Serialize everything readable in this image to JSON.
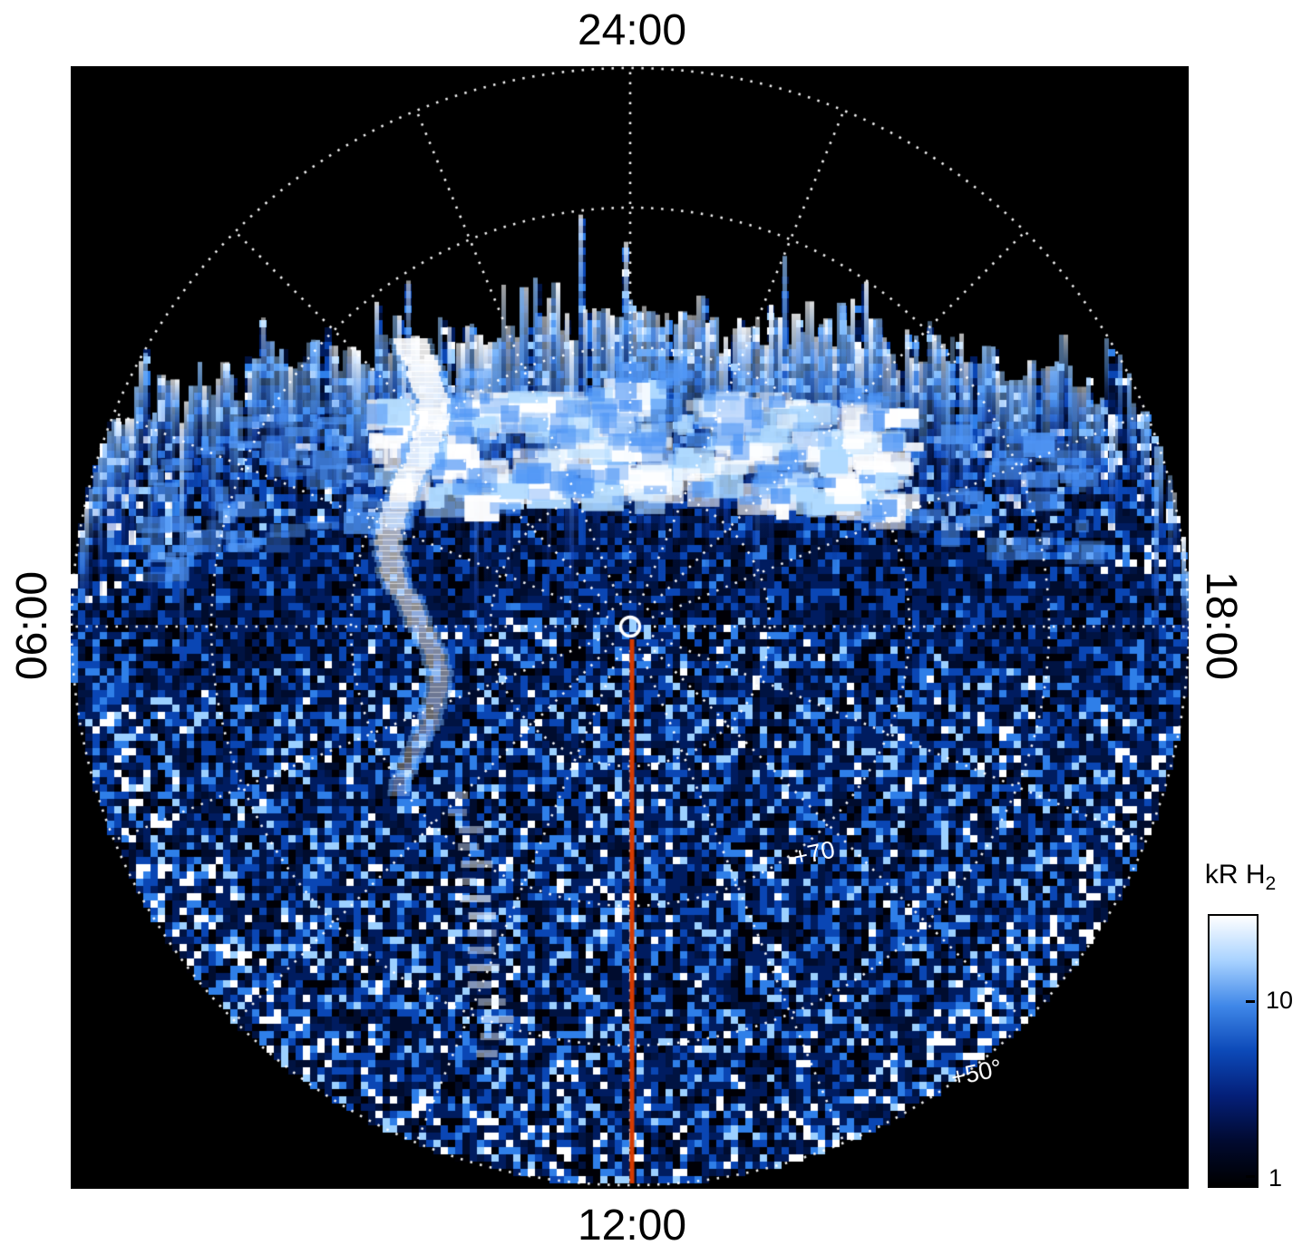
{
  "axis_labels": {
    "top": "24:00",
    "bottom": "12:00",
    "left": "06:00",
    "right": "18:00"
  },
  "latitude_labels": {
    "lat70": "+70",
    "lat50": "+50°"
  },
  "colorbar": {
    "title_main": "kR H",
    "title_sub": "2",
    "tick_upper": "10",
    "tick_lower": "1",
    "gradient": [
      "#ffffff",
      "#a8d2ff",
      "#3f87e8",
      "#0c49b8",
      "#041f78",
      "#010a30",
      "#000000"
    ]
  },
  "chart_data": {
    "type": "heatmap",
    "projection": "polar",
    "quantity": "H2 auroral emission brightness",
    "units": "kR",
    "angular_axis": {
      "kind": "local_time",
      "top": "24:00",
      "bottom": "12:00",
      "left": "06:00",
      "right": "18:00",
      "grid_interval_hours": 1.5
    },
    "radial_axis": {
      "kind": "latitude_deg",
      "grid_circles_deg": [
        80,
        70,
        60,
        50
      ],
      "outer_latitude_deg": 50,
      "labeled_circles": [
        "+70",
        "+50°"
      ]
    },
    "grid_style": {
      "line": "dotted",
      "color": "#ffffff"
    },
    "color_scale": {
      "scale": "log",
      "min": 1,
      "tick_values": [
        1,
        10
      ],
      "colors": [
        "#000010",
        "#001c60",
        "#0a46b4",
        "#2f7fe8",
        "#9cd0ff",
        "#ffffff"
      ]
    },
    "noon_meridian_line": {
      "local_time": "12:00",
      "color": "#d43a00"
    },
    "pole_marker": {
      "shape": "open-circle",
      "color": "#ffffff"
    },
    "features": [
      "Bright auroral band hugging the nightside limb around 24:00 local time, between ~70° and ~80° latitude",
      "Speckled faint emission (~1–10 kR) across the rest of the observed disk",
      "Black (no data) sector poleward of the jagged limb toward 24:00",
      "Narrow bright wiggly streak extending equatorward on the dawn side of noon",
      "Red line marking the 12:00 meridian from the pole to the 50° edge"
    ]
  }
}
